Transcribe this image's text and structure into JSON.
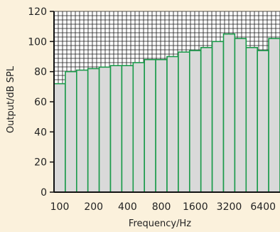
{
  "chart_data": {
    "type": "bar",
    "title": "",
    "xlabel": "Frequency/Hz",
    "ylabel": "Output/dB SPL",
    "ylim": [
      0,
      120
    ],
    "y_ticks": [
      0,
      20,
      40,
      60,
      80,
      100,
      120
    ],
    "x_tick_labels": [
      "100",
      "200",
      "400",
      "800",
      "1600",
      "3200",
      "6400"
    ],
    "bands": 20,
    "values": [
      72,
      80,
      81,
      82,
      83,
      84,
      84,
      86,
      88,
      88,
      90,
      93,
      94,
      96,
      100,
      105,
      102,
      96,
      94,
      102
    ],
    "grid": "dense grid above bars",
    "colors": {
      "background": "#fbf1dc",
      "bar_fill": "#d9d9d9",
      "bar_stroke": "#1a9a4a",
      "grid": "#1a1a1a"
    }
  }
}
